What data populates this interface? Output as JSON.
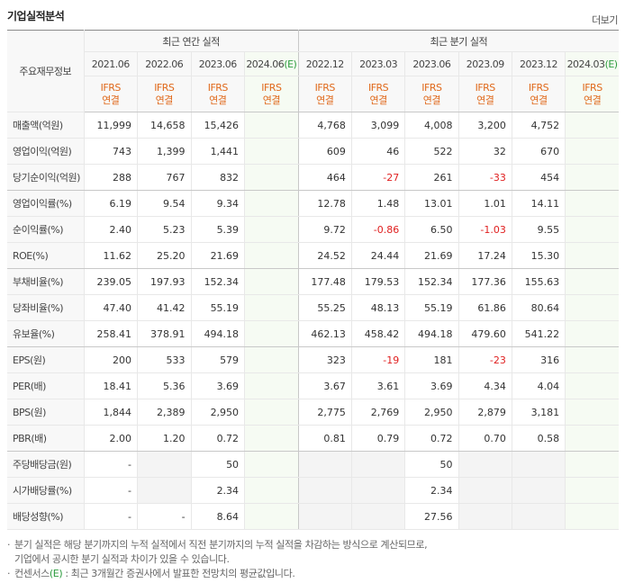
{
  "header": {
    "title": "기업실적분석",
    "more": "더보기"
  },
  "table": {
    "corner": "주요재무정보",
    "groups": [
      "최근 연간 실적",
      "최근 분기 실적"
    ],
    "periods": [
      {
        "date": "2021.06"
      },
      {
        "date": "2022.06"
      },
      {
        "date": "2023.06"
      },
      {
        "date": "2024.06",
        "estimate": "(E)"
      },
      {
        "date": "2022.12"
      },
      {
        "date": "2023.03"
      },
      {
        "date": "2023.06"
      },
      {
        "date": "2023.09"
      },
      {
        "date": "2023.12"
      },
      {
        "date": "2024.03",
        "estimate": "(E)"
      }
    ],
    "standards": [
      [
        "IFRS",
        "연결"
      ],
      [
        "IFRS",
        "연결"
      ],
      [
        "IFRS",
        "연결"
      ],
      [
        "IFRS",
        "연결"
      ],
      [
        "IFRS",
        "연결"
      ],
      [
        "IFRS",
        "연결"
      ],
      [
        "IFRS",
        "연결"
      ],
      [
        "IFRS",
        "연결"
      ],
      [
        "IFRS",
        "연결"
      ],
      [
        "IFRS",
        "연결"
      ]
    ],
    "rows": [
      {
        "label": "매출액(억원)",
        "values": [
          "11,999",
          "14,658",
          "15,426",
          null,
          "4,768",
          "3,099",
          "4,008",
          "3,200",
          "4,752",
          null
        ]
      },
      {
        "label": "영업이익(억원)",
        "values": [
          "743",
          "1,399",
          "1,441",
          null,
          "609",
          "46",
          "522",
          "32",
          "670",
          null
        ]
      },
      {
        "label": "당기순이익(억원)",
        "values": [
          "288",
          "767",
          "832",
          null,
          "464",
          "-27",
          "261",
          "-33",
          "454",
          null
        ]
      },
      {
        "label": "영업이익률(%)",
        "values": [
          "6.19",
          "9.54",
          "9.34",
          null,
          "12.78",
          "1.48",
          "13.01",
          "1.01",
          "14.11",
          null
        ]
      },
      {
        "label": "순이익률(%)",
        "values": [
          "2.40",
          "5.23",
          "5.39",
          null,
          "9.72",
          "-0.86",
          "6.50",
          "-1.03",
          "9.55",
          null
        ]
      },
      {
        "label": "ROE(%)",
        "values": [
          "11.62",
          "25.20",
          "21.69",
          null,
          "24.52",
          "24.44",
          "21.69",
          "17.24",
          "15.30",
          null
        ]
      },
      {
        "label": "부채비율(%)",
        "values": [
          "239.05",
          "197.93",
          "152.34",
          null,
          "177.48",
          "179.53",
          "152.34",
          "177.36",
          "155.63",
          null
        ]
      },
      {
        "label": "당좌비율(%)",
        "values": [
          "47.40",
          "41.42",
          "55.19",
          null,
          "55.25",
          "48.13",
          "55.19",
          "61.86",
          "80.64",
          null
        ]
      },
      {
        "label": "유보율(%)",
        "values": [
          "258.41",
          "378.91",
          "494.18",
          null,
          "462.13",
          "458.42",
          "494.18",
          "479.60",
          "541.22",
          null
        ]
      },
      {
        "label": "EPS(원)",
        "values": [
          "200",
          "533",
          "579",
          null,
          "323",
          "-19",
          "181",
          "-23",
          "316",
          null
        ]
      },
      {
        "label": "PER(배)",
        "values": [
          "18.41",
          "5.36",
          "3.69",
          null,
          "3.67",
          "3.61",
          "3.69",
          "4.34",
          "4.04",
          null
        ]
      },
      {
        "label": "BPS(원)",
        "values": [
          "1,844",
          "2,389",
          "2,950",
          null,
          "2,775",
          "2,769",
          "2,950",
          "2,879",
          "3,181",
          null
        ]
      },
      {
        "label": "PBR(배)",
        "values": [
          "2.00",
          "1.20",
          "0.72",
          null,
          "0.81",
          "0.79",
          "0.72",
          "0.70",
          "0.58",
          null
        ]
      },
      {
        "label": "주당배당금(원)",
        "values": [
          "-",
          null,
          "50",
          null,
          null,
          null,
          "50",
          null,
          null,
          null
        ]
      },
      {
        "label": "시가배당률(%)",
        "values": [
          "-",
          null,
          "2.34",
          null,
          null,
          null,
          "2.34",
          null,
          null,
          null
        ]
      },
      {
        "label": "배당성향(%)",
        "values": [
          "-",
          "-",
          "8.64",
          null,
          null,
          null,
          "27.56",
          null,
          null,
          null
        ]
      }
    ]
  },
  "notes": [
    {
      "text": "분기 실적은 해당 분기까지의 누적 실적에서 직전 분기까지의 누적 실적을 차감하는 방식으로 계산되므로,"
    },
    {
      "text": "기업에서 공시한 분기 실적과 차이가 있을 수 있습니다."
    },
    {
      "text": "컨센서스",
      "mark": "(E)",
      "rest": " : 최근 3개월간 증권사에서 발표한 전망치의 평균값입니다."
    }
  ]
}
